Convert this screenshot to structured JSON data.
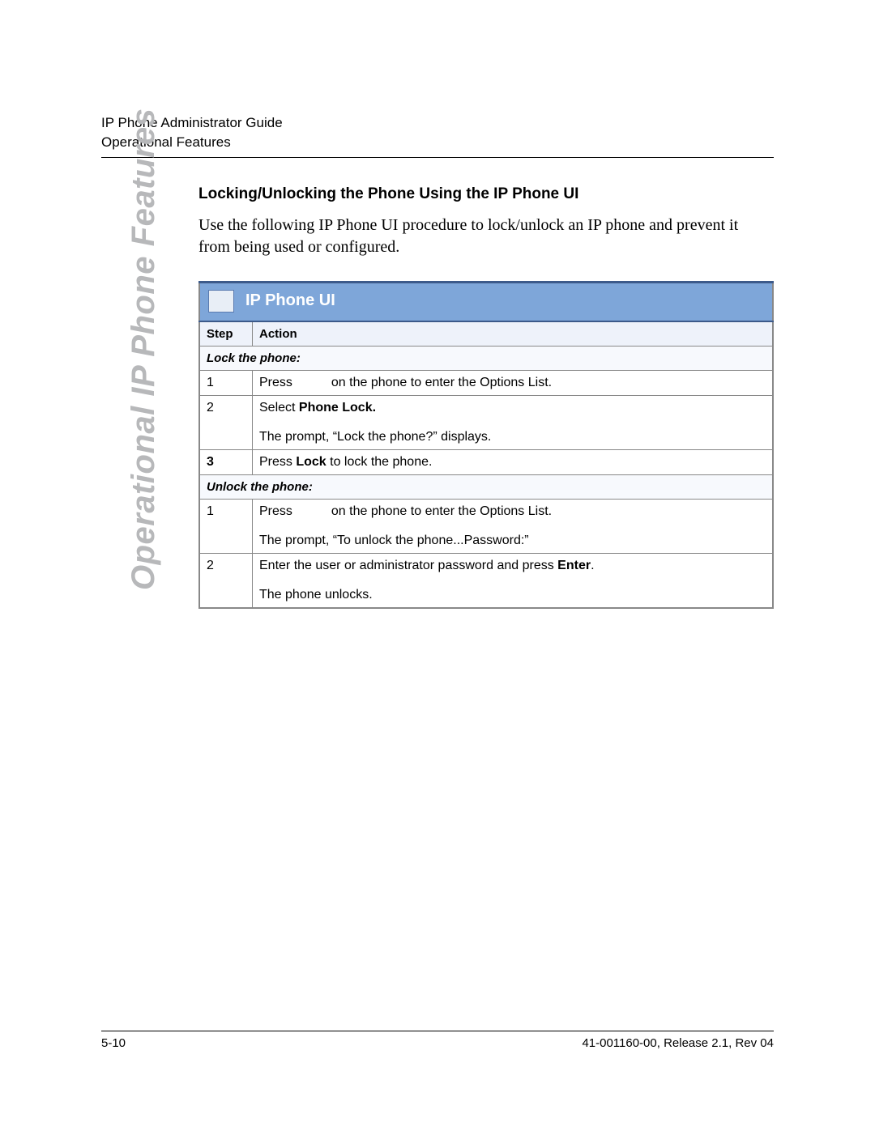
{
  "header": {
    "line1": "IP Phone Administrator Guide",
    "line2": "Operational Features"
  },
  "side_label": "Operational IP Phone Features",
  "section_title": "Locking/Unlocking the Phone Using the IP Phone UI",
  "intro": "Use the following IP Phone UI procedure to lock/unlock an IP phone and prevent it from being used or configured.",
  "table": {
    "title": "IP Phone UI",
    "col_step": "Step",
    "col_action": "Action",
    "sub_lock": "Lock the phone:",
    "lock_rows": [
      {
        "step": "1",
        "press": "Press",
        "rest": "on the phone to enter the Options List."
      },
      {
        "step": "2",
        "line1_a": "Select ",
        "line1_b": "Phone Lock.",
        "line2": "The prompt, “Lock the phone?” displays."
      },
      {
        "step": "3",
        "a": "Press ",
        "b": "Lock",
        "c": " to lock the phone."
      }
    ],
    "sub_unlock": "Unlock the phone:",
    "unlock_rows": [
      {
        "step": "1",
        "press": "Press",
        "rest": "on the phone to enter the Options List.",
        "line2": "The prompt, “To unlock the phone...Password:”"
      },
      {
        "step": "2",
        "a": "Enter the user or administrator password and press ",
        "b": "Enter",
        "c": ".",
        "line2": "The phone unlocks."
      }
    ]
  },
  "footer": {
    "left": "5-10",
    "right": "41-001160-00, Release 2.1, Rev 04"
  },
  "colors": {
    "title_bg": "#7ea6d9",
    "title_border": "#3c5a8a",
    "head_bg": "#eef2fa",
    "subhead_bg": "#f7f9fd",
    "side_label": "#b7b8ba"
  }
}
